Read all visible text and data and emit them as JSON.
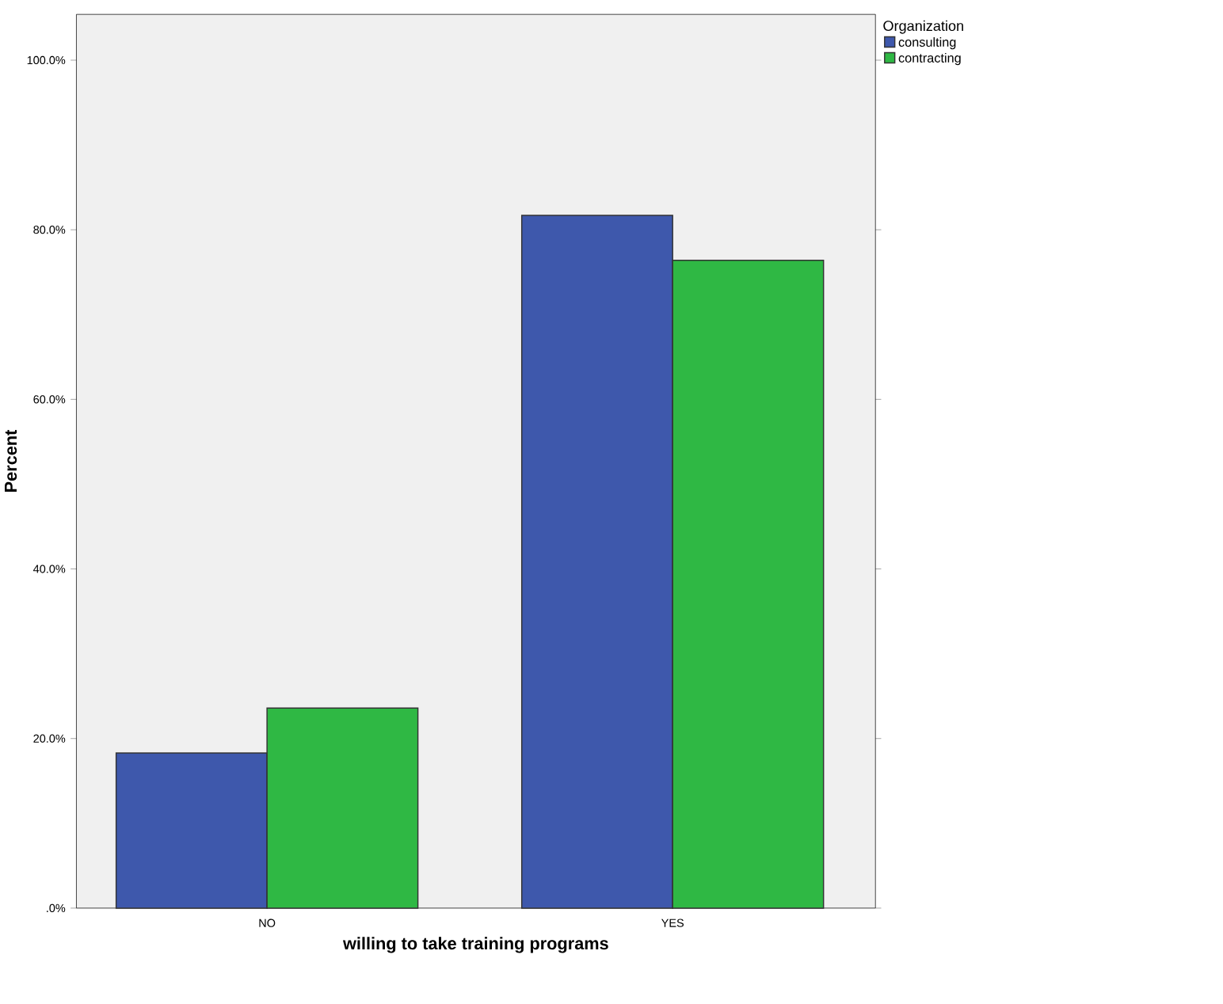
{
  "chart_data": {
    "type": "bar",
    "xlabel": "willing to take training programs",
    "ylabel": "Percent",
    "legend_title": "Organization",
    "legend": "top right",
    "categories": [
      "NO",
      "YES"
    ],
    "series": [
      {
        "name": "consulting",
        "color": "#3e58ac",
        "values": [
          18.3,
          81.7
        ]
      },
      {
        "name": "contracting",
        "color": "#2fb844",
        "values": [
          23.6,
          76.4
        ]
      }
    ],
    "ylim": [
      0,
      105.4
    ],
    "yticks": [
      {
        "value": 0,
        "label": ".0%"
      },
      {
        "value": 20,
        "label": "20.0%"
      },
      {
        "value": 40,
        "label": "40.0%"
      },
      {
        "value": 60,
        "label": "60.0%"
      },
      {
        "value": 80,
        "label": "80.0%"
      },
      {
        "value": 100,
        "label": "100.0%"
      }
    ],
    "grid": false
  }
}
